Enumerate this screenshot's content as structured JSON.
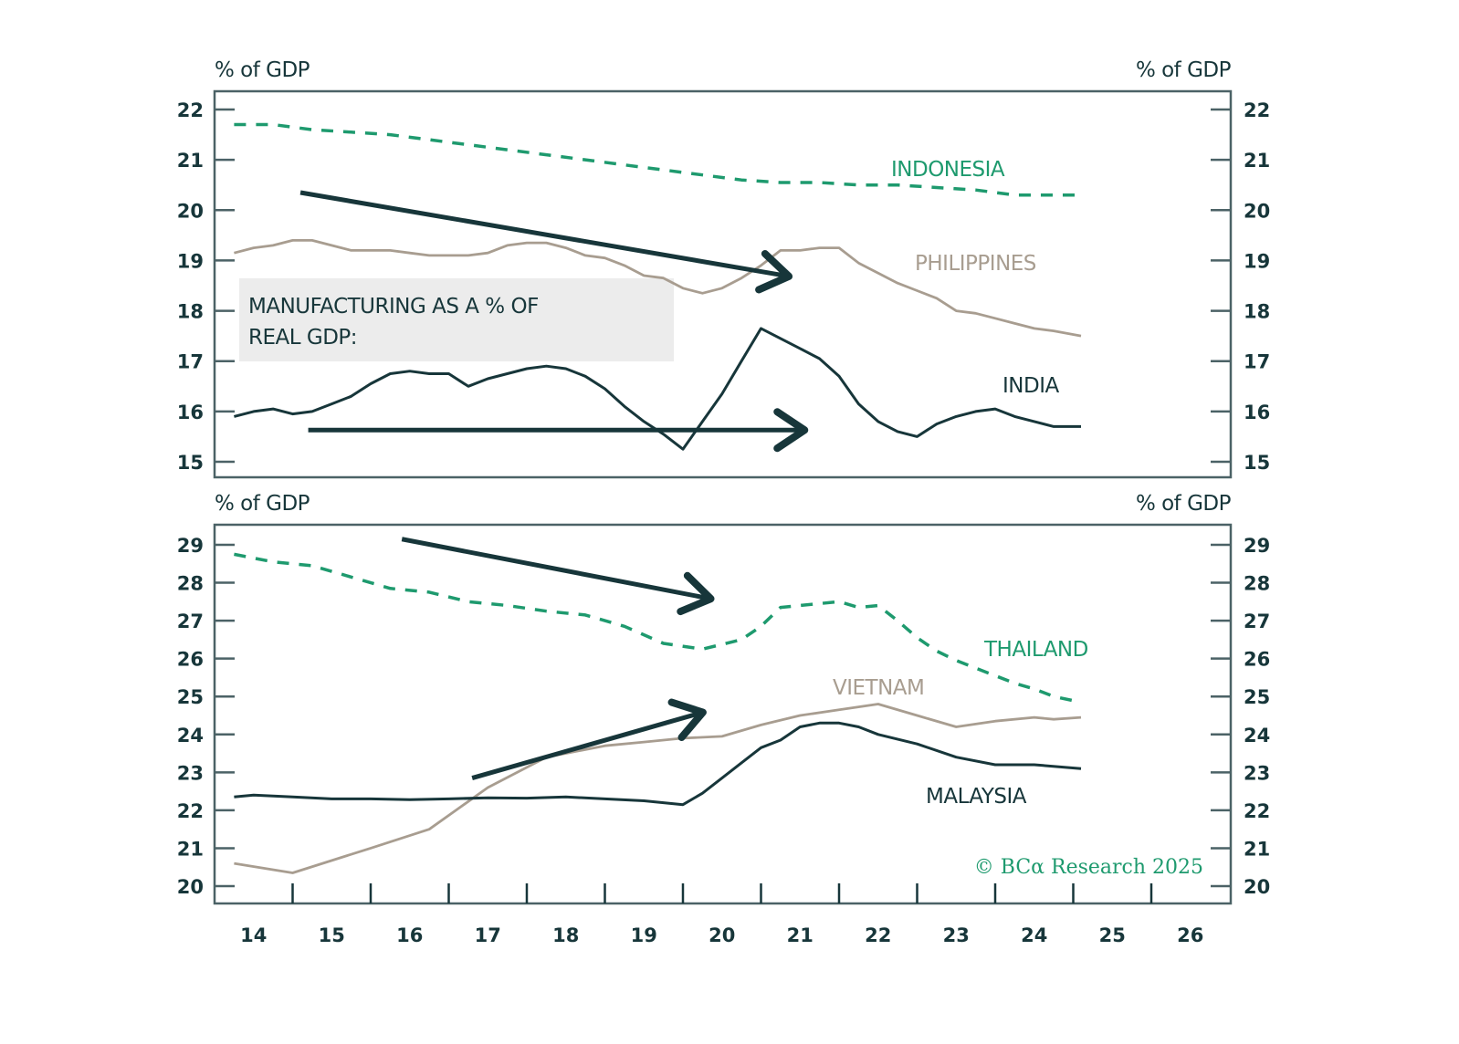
{
  "colors": {
    "dark": "#17363a",
    "green": "#1e9a6e",
    "taupe": "#a89d90",
    "frame": "#4b6266",
    "note_bg": "#ececec"
  },
  "note": {
    "line1": "MANUFACTURING AS A % OF",
    "line2": "REAL GDP:"
  },
  "credit": "© BCα Research 2025",
  "chart_data": [
    {
      "type": "line",
      "title": "Manufacturing as a % of real GDP: Indonesia, Philippines, India",
      "ylabel_left": "% of GDP",
      "ylabel_right": "% of GDP",
      "ylim": [
        14.7,
        22.4
      ],
      "yticks": [
        15,
        16,
        17,
        18,
        19,
        20,
        21,
        22
      ],
      "grid": false,
      "xlim": [
        2014,
        2027
      ],
      "series": [
        {
          "name": "INDONESIA",
          "style": "dashed",
          "color": "#1e9a6e",
          "x": [
            2014.25,
            2014.75,
            2015.25,
            2015.75,
            2016.25,
            2016.75,
            2017.25,
            2017.75,
            2018.25,
            2018.75,
            2019.25,
            2019.75,
            2020.25,
            2020.75,
            2021.25,
            2021.75,
            2022.25,
            2022.75,
            2023.25,
            2023.75,
            2024.25,
            2024.75,
            2025.1
          ],
          "values": [
            21.7,
            21.7,
            21.6,
            21.55,
            21.5,
            21.4,
            21.3,
            21.2,
            21.1,
            21.0,
            20.9,
            20.8,
            20.7,
            20.6,
            20.55,
            20.55,
            20.5,
            20.5,
            20.45,
            20.4,
            20.3,
            20.3,
            20.3
          ]
        },
        {
          "name": "PHILIPPINES",
          "style": "solid",
          "color": "#a89d90",
          "x": [
            2014.25,
            2014.5,
            2014.75,
            2015.0,
            2015.25,
            2015.5,
            2015.75,
            2016.0,
            2016.25,
            2016.5,
            2016.75,
            2017.0,
            2017.25,
            2017.5,
            2017.75,
            2018.0,
            2018.25,
            2018.5,
            2018.75,
            2019.0,
            2019.25,
            2019.5,
            2019.75,
            2020.0,
            2020.25,
            2020.5,
            2020.75,
            2021.0,
            2021.25,
            2021.5,
            2021.75,
            2022.0,
            2022.25,
            2022.5,
            2022.75,
            2023.0,
            2023.25,
            2023.5,
            2023.75,
            2024.0,
            2024.25,
            2024.5,
            2024.75,
            2025.1
          ],
          "values": [
            19.15,
            19.25,
            19.3,
            19.4,
            19.4,
            19.3,
            19.2,
            19.2,
            19.2,
            19.15,
            19.1,
            19.1,
            19.1,
            19.15,
            19.3,
            19.35,
            19.35,
            19.25,
            19.1,
            19.05,
            18.9,
            18.7,
            18.65,
            18.45,
            18.35,
            18.45,
            18.65,
            18.9,
            19.2,
            19.2,
            19.25,
            19.25,
            18.95,
            18.75,
            18.55,
            18.4,
            18.25,
            18.0,
            17.95,
            17.85,
            17.75,
            17.65,
            17.6,
            17.5
          ]
        },
        {
          "name": "INDIA",
          "style": "solid",
          "color": "#17363a",
          "x": [
            2014.25,
            2014.5,
            2014.75,
            2015.0,
            2015.25,
            2015.5,
            2015.75,
            2016.0,
            2016.25,
            2016.5,
            2016.75,
            2017.0,
            2017.25,
            2017.5,
            2017.75,
            2018.0,
            2018.25,
            2018.5,
            2018.75,
            2019.0,
            2019.25,
            2019.5,
            2019.75,
            2020.0,
            2020.25,
            2020.5,
            2020.75,
            2021.0,
            2021.25,
            2021.5,
            2021.75,
            2022.0,
            2022.25,
            2022.5,
            2022.75,
            2023.0,
            2023.25,
            2023.5,
            2023.75,
            2024.0,
            2024.25,
            2024.5,
            2024.75,
            2025.1
          ],
          "values": [
            15.9,
            16.0,
            16.05,
            15.95,
            16.0,
            16.15,
            16.3,
            16.55,
            16.75,
            16.8,
            16.75,
            16.75,
            16.5,
            16.65,
            16.75,
            16.85,
            16.9,
            16.85,
            16.7,
            16.45,
            16.1,
            15.8,
            15.55,
            15.25,
            15.8,
            16.35,
            17.0,
            17.65,
            17.45,
            17.25,
            17.05,
            16.7,
            16.15,
            15.8,
            15.6,
            15.5,
            15.75,
            15.9,
            16.0,
            16.05,
            15.9,
            15.8,
            15.7,
            15.7
          ]
        }
      ],
      "annotations": [
        {
          "type": "arrow",
          "label": "downtrend-arrow",
          "from": [
            2015.1,
            20.35
          ],
          "to": [
            2021.3,
            18.7
          ]
        },
        {
          "type": "arrow",
          "label": "flat-arrow",
          "from": [
            2015.2,
            15.63
          ],
          "to": [
            2021.5,
            15.63
          ]
        }
      ]
    },
    {
      "type": "line",
      "title": "Manufacturing as a % of real GDP: Thailand, Vietnam, Malaysia",
      "ylabel_left": "% of GDP",
      "ylabel_right": "% of GDP",
      "ylim": [
        19.6,
        29.5
      ],
      "yticks": [
        20,
        21,
        22,
        23,
        24,
        25,
        26,
        27,
        28,
        29
      ],
      "grid": false,
      "xlabel": "",
      "xlim": [
        2014,
        2027
      ],
      "xticks": [
        "14",
        "15",
        "16",
        "17",
        "18",
        "19",
        "20",
        "21",
        "22",
        "23",
        "24",
        "25",
        "26"
      ],
      "series": [
        {
          "name": "THAILAND",
          "style": "dashed",
          "color": "#1e9a6e",
          "x": [
            2014.25,
            2014.75,
            2015.25,
            2015.75,
            2016.25,
            2016.75,
            2017.25,
            2017.75,
            2018.25,
            2018.75,
            2019.25,
            2019.75,
            2020.25,
            2020.75,
            2021.0,
            2021.25,
            2021.75,
            2022.0,
            2022.25,
            2022.5,
            2022.75,
            2023.0,
            2023.25,
            2023.5,
            2023.75,
            2024.0,
            2024.25,
            2024.5,
            2024.75,
            2025.1
          ],
          "values": [
            28.75,
            28.55,
            28.45,
            28.15,
            27.85,
            27.75,
            27.5,
            27.4,
            27.25,
            27.15,
            26.85,
            26.4,
            26.25,
            26.5,
            26.85,
            27.35,
            27.45,
            27.5,
            27.35,
            27.4,
            27.0,
            26.55,
            26.2,
            25.95,
            25.75,
            25.55,
            25.35,
            25.2,
            25.0,
            24.85
          ]
        },
        {
          "name": "VIETNAM",
          "style": "solid",
          "color": "#a89d90",
          "x": [
            2014.25,
            2015.0,
            2016.0,
            2016.75,
            2017.5,
            2018.25,
            2019.0,
            2019.5,
            2020.0,
            2020.5,
            2021.0,
            2021.5,
            2022.0,
            2022.5,
            2023.0,
            2023.5,
            2024.0,
            2024.5,
            2024.75,
            2025.1
          ],
          "values": [
            20.6,
            20.35,
            21.0,
            21.5,
            22.6,
            23.4,
            23.7,
            23.8,
            23.9,
            23.95,
            24.25,
            24.5,
            24.65,
            24.8,
            24.5,
            24.2,
            24.35,
            24.45,
            24.4,
            24.45
          ]
        },
        {
          "name": "MALAYSIA",
          "style": "solid",
          "color": "#17363a",
          "x": [
            2014.25,
            2014.5,
            2015.0,
            2015.5,
            2016.0,
            2016.5,
            2017.0,
            2017.5,
            2018.0,
            2018.5,
            2019.0,
            2019.5,
            2020.0,
            2020.25,
            2020.5,
            2020.75,
            2021.0,
            2021.25,
            2021.5,
            2021.75,
            2022.0,
            2022.25,
            2022.5,
            2023.0,
            2023.5,
            2024.0,
            2024.5,
            2025.1
          ],
          "values": [
            22.35,
            22.4,
            22.35,
            22.3,
            22.3,
            22.28,
            22.3,
            22.33,
            22.32,
            22.35,
            22.3,
            22.25,
            22.15,
            22.45,
            22.85,
            23.25,
            23.65,
            23.85,
            24.2,
            24.3,
            24.3,
            24.2,
            24.0,
            23.75,
            23.4,
            23.2,
            23.2,
            23.1
          ]
        }
      ],
      "annotations": [
        {
          "type": "arrow",
          "label": "downtrend-arrow",
          "from": [
            2016.4,
            29.15
          ],
          "to": [
            2020.3,
            27.6
          ]
        },
        {
          "type": "arrow",
          "label": "uptrend-arrow",
          "from": [
            2017.3,
            22.85
          ],
          "to": [
            2020.2,
            24.55
          ]
        }
      ]
    }
  ]
}
